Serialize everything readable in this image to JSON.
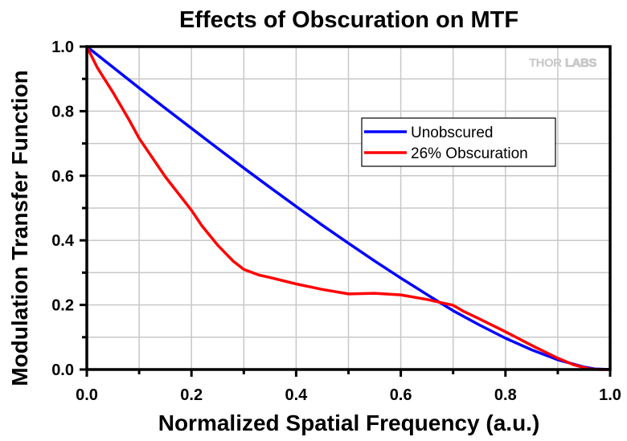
{
  "chart_data": {
    "type": "line",
    "title": "Effects of Obscuration on MTF",
    "xlabel": "Normalized Spatial Frequency (a.u.)",
    "ylabel": "Modulation Transfer Function",
    "xlim": [
      0,
      1.0
    ],
    "ylim": [
      0,
      1.0
    ],
    "xticks": [
      0.0,
      0.2,
      0.4,
      0.6,
      0.8,
      1.0
    ],
    "yticks": [
      0.0,
      0.2,
      0.4,
      0.6,
      0.8,
      1.0
    ],
    "xtick_labels": [
      "0.0",
      "0.2",
      "0.4",
      "0.6",
      "0.8",
      "1.0"
    ],
    "ytick_labels": [
      "0.0",
      "0.2",
      "0.4",
      "0.6",
      "0.8",
      "1.0"
    ],
    "minor_step": 0.1,
    "grid": true,
    "legend_position": "upper-right-center",
    "watermark": {
      "text_bold": "THOR",
      "text_outline": "LABS"
    },
    "series": [
      {
        "name": "Unobscured",
        "color": "#0000ff",
        "x": [
          0.0,
          0.05,
          0.1,
          0.15,
          0.2,
          0.25,
          0.3,
          0.35,
          0.4,
          0.45,
          0.5,
          0.55,
          0.6,
          0.65,
          0.7,
          0.75,
          0.8,
          0.85,
          0.9,
          0.95,
          0.97,
          1.0
        ],
        "y": [
          1.0,
          0.936,
          0.872,
          0.809,
          0.747,
          0.685,
          0.624,
          0.564,
          0.505,
          0.447,
          0.391,
          0.336,
          0.283,
          0.232,
          0.182,
          0.138,
          0.097,
          0.061,
          0.03,
          0.008,
          0.002,
          0.0
        ]
      },
      {
        "name": "26% Obscuration",
        "color": "#ff0000",
        "x": [
          0.0,
          0.02,
          0.05,
          0.08,
          0.1,
          0.15,
          0.2,
          0.22,
          0.25,
          0.28,
          0.3,
          0.33,
          0.35,
          0.4,
          0.45,
          0.5,
          0.55,
          0.6,
          0.65,
          0.68,
          0.7,
          0.72,
          0.75,
          0.8,
          0.85,
          0.9,
          0.93,
          0.96,
          0.98,
          1.0
        ],
        "y": [
          1.0,
          0.935,
          0.858,
          0.775,
          0.716,
          0.597,
          0.493,
          0.445,
          0.385,
          0.335,
          0.31,
          0.292,
          0.285,
          0.265,
          0.248,
          0.234,
          0.236,
          0.231,
          0.217,
          0.206,
          0.199,
          0.18,
          0.157,
          0.117,
          0.075,
          0.035,
          0.015,
          0.002,
          0.0,
          0.0
        ]
      }
    ]
  }
}
